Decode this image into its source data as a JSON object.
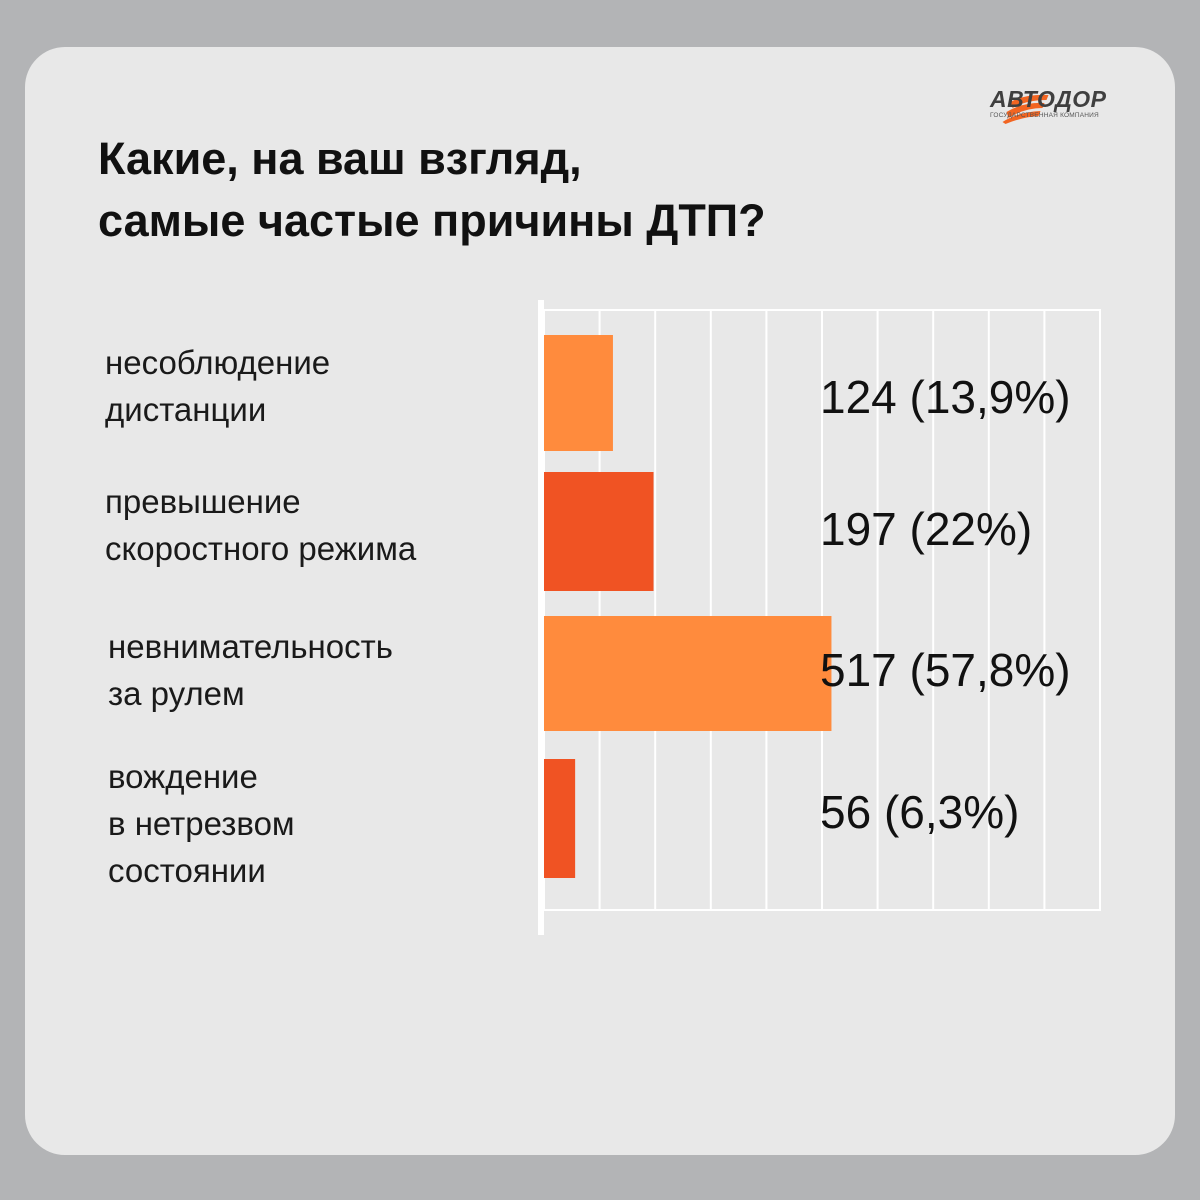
{
  "brand": {
    "name": "АВТОДОР",
    "subtitle": "ГОСУДАРСТВЕННАЯ КОМПАНИЯ",
    "icon": "avtodor-road-logo-icon",
    "color": "#f26522"
  },
  "title_lines": [
    "Какие, на ваш взгляд,",
    "самые частые причины ДТП?"
  ],
  "colors": {
    "light_bar": "#ff8b3d",
    "dark_bar": "#f05323",
    "background": "#b3b4b6",
    "card": "#e8e8e8"
  },
  "chart_data": {
    "type": "bar",
    "orientation": "horizontal",
    "title": "Какие, на ваш взгляд, самые частые причины ДТП?",
    "categories": [
      "несоблюдение дистанции",
      "превышение скоростного режима",
      "невнимательность за рулем",
      "вождение в нетрезвом состоянии"
    ],
    "category_lines": [
      [
        "несоблюдение",
        "дистанции"
      ],
      [
        "превышение",
        "скоростного режима"
      ],
      [
        "невнимательность",
        "за рулем"
      ],
      [
        "вождение",
        "в нетрезвом",
        "состоянии"
      ]
    ],
    "values": [
      124,
      197,
      517,
      56
    ],
    "percents": [
      13.9,
      22,
      57.8,
      6.3
    ],
    "value_labels": [
      "124 (13,9%)",
      "197 (22%)",
      "517 (57,8%)",
      "56 (6,3%)"
    ],
    "bar_colors": [
      "#ff8b3d",
      "#f05323",
      "#ff8b3d",
      "#f05323"
    ],
    "xlim": [
      0,
      1000
    ],
    "grid": true,
    "xlabel": "",
    "ylabel": ""
  }
}
